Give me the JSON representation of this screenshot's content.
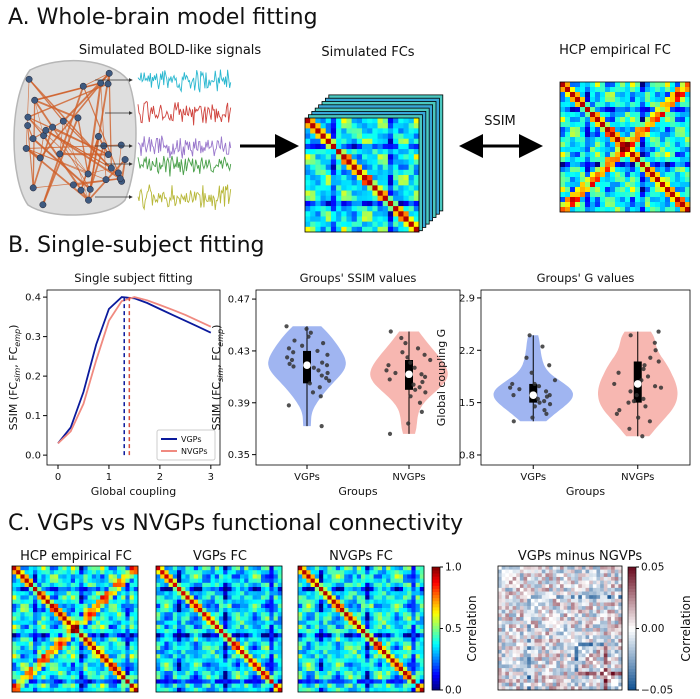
{
  "panels": {
    "a": {
      "title": "A. Whole-brain model fitting",
      "signals_label": "Simulated BOLD-like signals",
      "sim_fc_label": "Simulated FCs",
      "emp_fc_label": "HCP empirical FC",
      "ssim_label": "SSIM"
    },
    "b": {
      "title": "B. Single-subject fitting"
    },
    "c": {
      "title": "C. VGPs vs NVGPs functional connectivity",
      "matrix_titles": [
        "HCP empirical FC",
        "VGPs FC",
        "NVGPs FC",
        "VGPs minus NGVPs"
      ],
      "colorbars": [
        {
          "label": "Correlation",
          "lim": [
            0,
            1
          ],
          "ticks": [
            {
              "value": 0,
              "label": "0.0"
            },
            {
              "value": 0.5,
              "label": "0.5"
            },
            {
              "value": 1,
              "label": "1.0"
            }
          ]
        },
        {
          "label": "Correlation",
          "lim": [
            -0.05,
            0.05
          ],
          "ticks": [
            {
              "value": -0.05,
              "label": "−0.05"
            },
            {
              "value": 0,
              "label": "0.00"
            },
            {
              "value": 0.05,
              "label": "0.05"
            }
          ]
        }
      ]
    }
  },
  "chart_data": [
    {
      "type": "line",
      "title": "Single subject fitting",
      "xlabel": "Global coupling",
      "ylabel": [
        "SSIM (FC",
        "sim",
        ", FC",
        "emp",
        ")"
      ],
      "x": [
        0,
        0.25,
        0.5,
        0.75,
        1,
        1.25,
        1.5,
        1.75,
        2,
        2.25,
        2.5,
        2.75,
        3
      ],
      "series": [
        {
          "name": "VGPs",
          "color": "#0b1a9c",
          "values": [
            0.03,
            0.07,
            0.16,
            0.28,
            0.37,
            0.4,
            0.397,
            0.385,
            0.37,
            0.355,
            0.34,
            0.325,
            0.31
          ]
        },
        {
          "name": "NVGPs",
          "color": "#f08a80",
          "values": [
            0.03,
            0.06,
            0.13,
            0.24,
            0.34,
            0.39,
            0.4,
            0.392,
            0.38,
            0.368,
            0.355,
            0.34,
            0.325
          ]
        }
      ],
      "vlines": [
        {
          "x": 1.3,
          "y": [
            0,
            0.4
          ],
          "color": "#0b1a9c"
        },
        {
          "x": 1.4,
          "y": [
            0,
            0.4
          ],
          "color": "#d9503f"
        }
      ],
      "xlim": [
        -0.216,
        3.18
      ],
      "ylim": [
        -0.025,
        0.418
      ],
      "xticks": [
        0,
        1,
        2,
        3
      ],
      "yticks": [
        {
          "value": 0,
          "label": "0.0"
        },
        {
          "value": 0.1,
          "label": "0.1"
        },
        {
          "value": 0.2,
          "label": "0.2"
        },
        {
          "value": 0.3,
          "label": "0.3"
        },
        {
          "value": 0.4,
          "label": "0.4"
        }
      ],
      "legend": "lower right"
    },
    {
      "type": "violin",
      "title": "Groups' SSIM values",
      "xlabel": "Groups",
      "ylabel": [
        "SSIM (FC",
        "sim",
        ", FC",
        "emp",
        ")"
      ],
      "categories": [
        "VGPs",
        "NVGPs"
      ],
      "ylim": [
        0.342,
        0.477
      ],
      "yticks": [
        0.35,
        0.39,
        0.43,
        0.47
      ],
      "groups": [
        {
          "color": "#8fa8ee",
          "points": [
            0.372,
            0.388,
            0.395,
            0.398,
            0.402,
            0.405,
            0.407,
            0.409,
            0.411,
            0.413,
            0.415,
            0.417,
            0.418,
            0.419,
            0.42,
            0.421,
            0.423,
            0.425,
            0.427,
            0.429,
            0.43,
            0.432,
            0.434,
            0.436,
            0.438,
            0.441,
            0.444,
            0.447,
            0.449
          ],
          "box": {
            "whisker_low": 0.372,
            "q1": 0.405,
            "median": 0.419,
            "q3": 0.43,
            "whisker_high": 0.449
          }
        },
        {
          "color": "#f6aaa3",
          "points": [
            0.366,
            0.374,
            0.383,
            0.39,
            0.395,
            0.398,
            0.4,
            0.402,
            0.404,
            0.406,
            0.408,
            0.41,
            0.411,
            0.412,
            0.413,
            0.415,
            0.417,
            0.419,
            0.421,
            0.423,
            0.425,
            0.427,
            0.429,
            0.432,
            0.436,
            0.44,
            0.445
          ],
          "box": {
            "whisker_low": 0.366,
            "q1": 0.4,
            "median": 0.412,
            "q3": 0.423,
            "whisker_high": 0.445
          }
        }
      ]
    },
    {
      "type": "violin",
      "title": "Groups' G values",
      "xlabel": "Groups",
      "ylabel": [
        "Global coupling G"
      ],
      "categories": [
        "VGPs",
        "NVGPs"
      ],
      "ylim": [
        0.666,
        3.006
      ],
      "yticks": [
        0.8,
        1.5,
        2.2,
        2.9
      ],
      "groups": [
        {
          "color": "#8fa8ee",
          "points": [
            1.25,
            1.3,
            1.35,
            1.4,
            1.45,
            1.48,
            1.5,
            1.52,
            1.55,
            1.58,
            1.6,
            1.6,
            1.62,
            1.65,
            1.68,
            1.7,
            1.72,
            1.75,
            1.75,
            1.8,
            1.9,
            2.0,
            2.1,
            2.25,
            2.4
          ],
          "box": {
            "whisker_low": 1.25,
            "q1": 1.5,
            "median": 1.6,
            "q3": 1.75,
            "whisker_high": 2.4
          }
        },
        {
          "color": "#f6aaa3",
          "points": [
            1.05,
            1.15,
            1.25,
            1.3,
            1.35,
            1.4,
            1.45,
            1.5,
            1.52,
            1.55,
            1.6,
            1.65,
            1.7,
            1.72,
            1.75,
            1.8,
            1.85,
            1.9,
            1.95,
            2.0,
            2.05,
            2.1,
            2.2,
            2.3,
            2.4,
            2.45
          ],
          "box": {
            "whisker_low": 1.05,
            "q1": 1.5,
            "median": 1.75,
            "q3": 2.05,
            "whisker_high": 2.45
          }
        }
      ]
    }
  ]
}
